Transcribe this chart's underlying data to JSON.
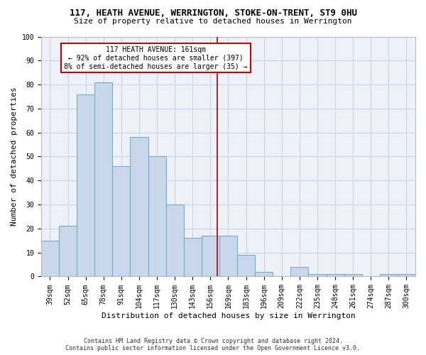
{
  "title1": "117, HEATH AVENUE, WERRINGTON, STOKE-ON-TRENT, ST9 0HU",
  "title2": "Size of property relative to detached houses in Werrington",
  "xlabel": "Distribution of detached houses by size in Werrington",
  "ylabel": "Number of detached properties",
  "footer1": "Contains HM Land Registry data © Crown copyright and database right 2024.",
  "footer2": "Contains public sector information licensed under the Open Government Licence v3.0.",
  "categories": [
    "39sqm",
    "52sqm",
    "65sqm",
    "78sqm",
    "91sqm",
    "104sqm",
    "117sqm",
    "130sqm",
    "143sqm",
    "156sqm",
    "169sqm",
    "183sqm",
    "196sqm",
    "209sqm",
    "222sqm",
    "235sqm",
    "248sqm",
    "261sqm",
    "274sqm",
    "287sqm",
    "300sqm"
  ],
  "values": [
    15,
    21,
    76,
    81,
    46,
    58,
    50,
    30,
    16,
    17,
    17,
    9,
    2,
    0,
    4,
    1,
    1,
    1,
    0,
    1,
    1
  ],
  "bar_color": "#c8d8ea",
  "bar_edge_color": "#7aaac8",
  "vline_color": "#aa0000",
  "vline_x_index": 9.38,
  "annotation_text_line1": "117 HEATH AVENUE: 161sqm",
  "annotation_text_line2": "← 92% of detached houses are smaller (397)",
  "annotation_text_line3": "8% of semi-detached houses are larger (35) →",
  "annotation_box_color": "#cc0000",
  "ylim": [
    0,
    100
  ],
  "yticks": [
    0,
    10,
    20,
    30,
    40,
    50,
    60,
    70,
    80,
    90,
    100
  ],
  "grid_color": "#c8d4e8",
  "bg_color": "#eef2f8",
  "title1_fontsize": 9,
  "title2_fontsize": 8,
  "tick_fontsize": 7,
  "ylabel_fontsize": 8,
  "xlabel_fontsize": 8,
  "footer_fontsize": 6,
  "annot_fontsize": 7
}
